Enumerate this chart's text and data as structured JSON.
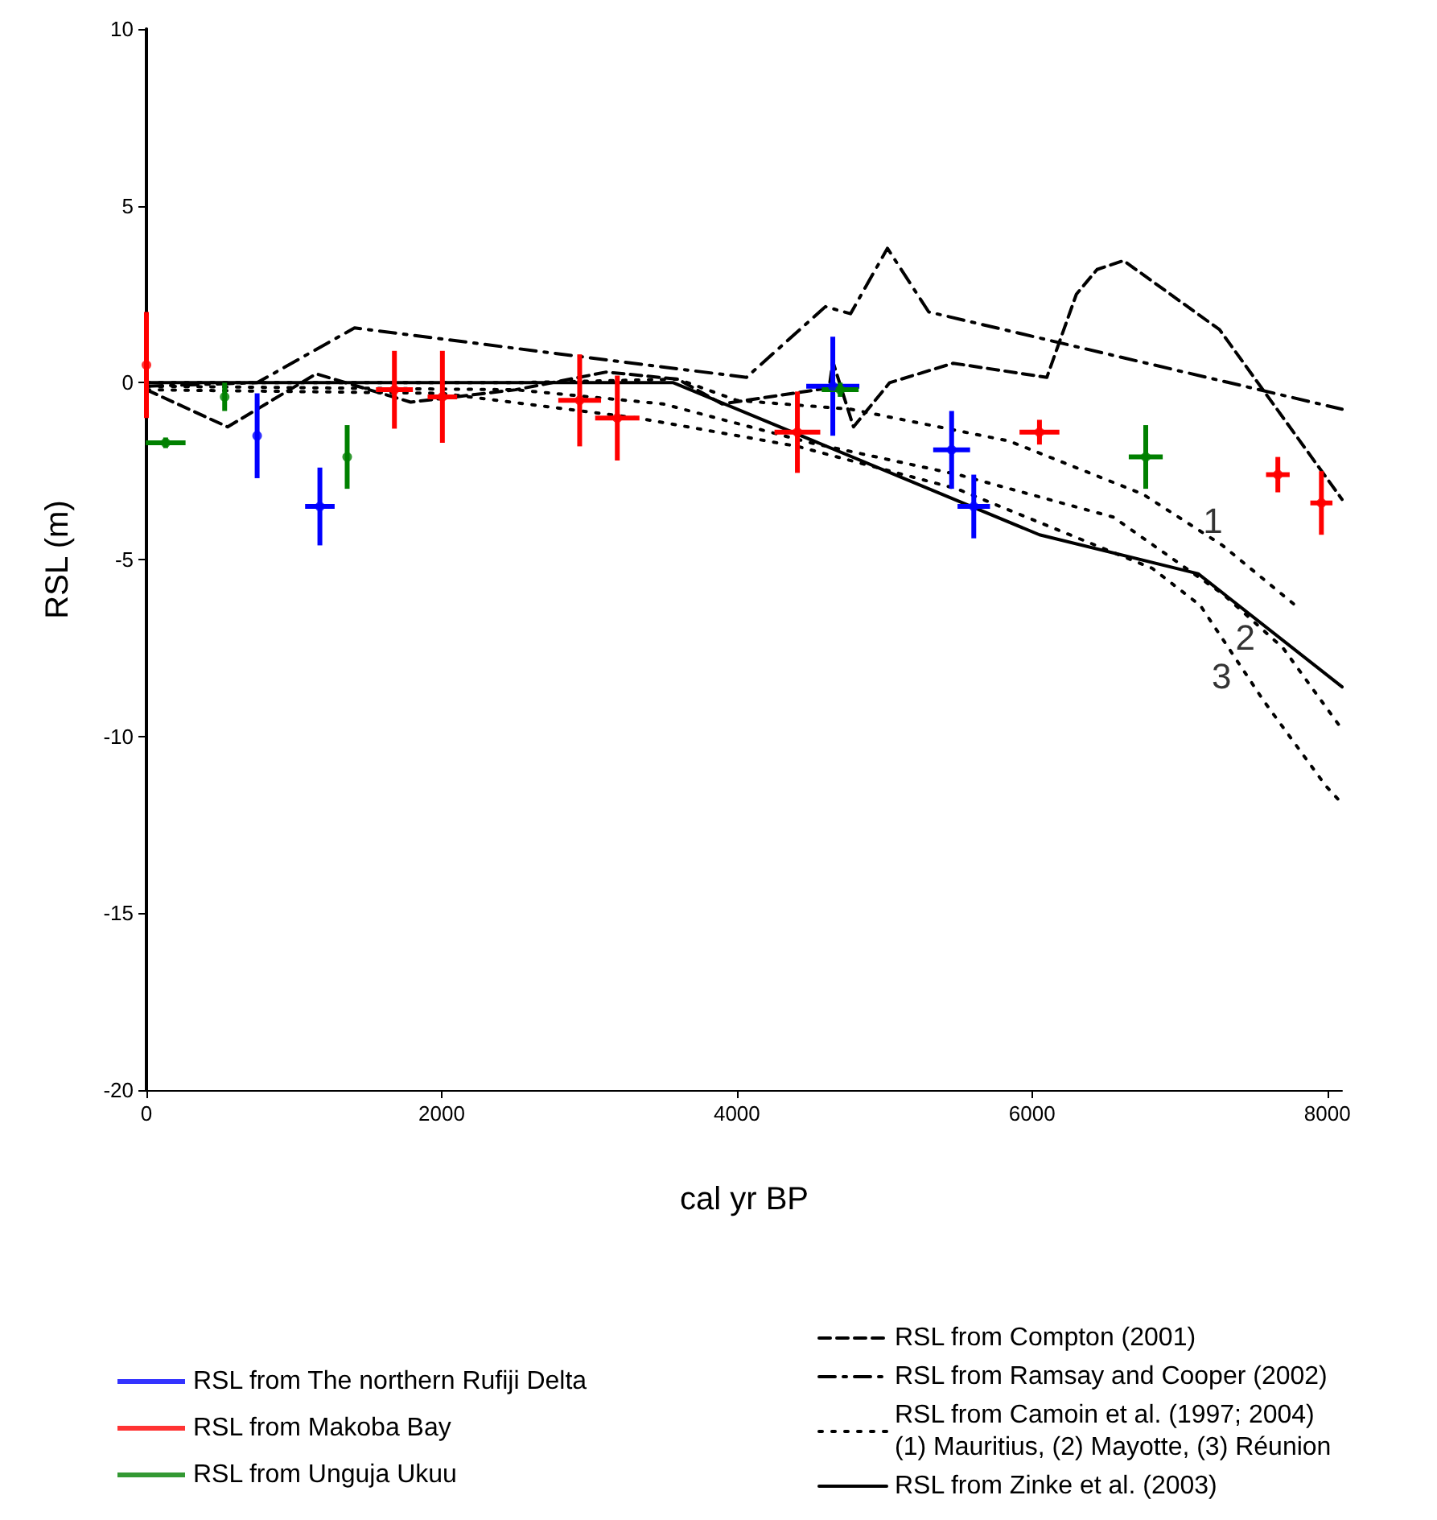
{
  "chart_data": {
    "type": "scatter",
    "xlabel": "cal yr BP",
    "ylabel": "RSL (m)",
    "xlim": [
      0,
      8100
    ],
    "xticks": [
      0,
      2000,
      4000,
      6000,
      8000
    ],
    "ylim": [
      -20,
      10
    ],
    "yticks": [
      -20,
      -15,
      -10,
      -5,
      0,
      5,
      10
    ],
    "grid": false,
    "legend": "bottom",
    "marker": "circle",
    "series": [
      {
        "name": "RSL from The northern Rufiji Delta",
        "color": "#0000ff",
        "x": [
          750,
          1175,
          4650,
          5455,
          5605
        ],
        "values": [
          -1.5,
          -3.5,
          -0.1,
          -1.9,
          -3.5
        ],
        "errors": [
          1.2,
          1.1,
          1.4,
          1.1,
          0.9
        ],
        "xerrors": [
          null,
          100,
          180,
          125,
          110
        ]
      },
      {
        "name": "RSL from Makoba Bay",
        "color": "#ff0000",
        "x": [
          0,
          1680,
          2005,
          2935,
          3190,
          4410,
          6050,
          7665,
          7960
        ],
        "values": [
          0.5,
          -0.2,
          -0.4,
          -0.5,
          -1.0,
          -1.4,
          -1.4,
          -2.6,
          -3.4
        ],
        "errors": [
          1.5,
          1.1,
          1.3,
          1.3,
          1.2,
          1.15,
          0.35,
          0.5,
          0.9
        ],
        "xerrors": [
          null,
          125,
          100,
          145,
          150,
          155,
          135,
          80,
          75
        ]
      },
      {
        "name": "RSL from Unguja Ukuu",
        "color": "#008000",
        "x": [
          130,
          530,
          1360,
          4700,
          6770
        ],
        "values": [
          -1.7,
          -0.4,
          -2.1,
          -0.2,
          -2.1
        ],
        "errors": [
          0.15,
          0.4,
          0.9,
          0.2,
          0.9
        ],
        "xerrors": [
          135,
          null,
          null,
          125,
          115
        ]
      },
      {
        "name": "RSL from Compton (2001)",
        "type": "line",
        "color": "#000000",
        "line_style": "dashed",
        "marker": "none",
        "x": [
          0,
          550,
          1150,
          1790,
          2500,
          3115,
          3600,
          3900,
          4625,
          4650,
          4790,
          5035,
          5465,
          6100,
          6300,
          6440,
          6620,
          7270,
          8100
        ],
        "values": [
          -0.2,
          -1.25,
          0.25,
          -0.55,
          -0.2,
          0.3,
          0.1,
          -0.6,
          -0.15,
          0.6,
          -1.25,
          0.0,
          0.55,
          0.15,
          2.5,
          3.2,
          3.45,
          1.5,
          -3.3
        ]
      },
      {
        "name": "RSL from Ramsay and Cooper (2002)",
        "type": "line",
        "color": "#000000",
        "line_style": "dashdot",
        "marker": "none",
        "x": [
          0,
          750,
          1410,
          3200,
          4065,
          4600,
          4770,
          5020,
          5300,
          8100
        ],
        "values": [
          -0.1,
          0.0,
          1.55,
          0.6,
          0.15,
          2.15,
          1.95,
          3.8,
          2.0,
          -0.75
        ]
      },
      {
        "name": "RSL from Camoin et al. (1997; 2004)\n(1) Mauritius, (2) Mayotte, (3) Réunion",
        "type": "line",
        "color": "#000000",
        "line_style": "dotted",
        "marker": "none",
        "x": [
          0,
          2500,
          3600,
          4000,
          4770,
          5845,
          6750,
          7290,
          7785
        ],
        "values": [
          0.0,
          0.0,
          0.1,
          -0.5,
          -0.75,
          -1.65,
          -3.15,
          -4.6,
          -6.3
        ]
      },
      {
        "type": "line",
        "color": "#000000",
        "line_style": "dotted",
        "marker": "none",
        "x": [
          0,
          2500,
          3500,
          4500,
          5500,
          6550,
          7300,
          7700,
          8100
        ],
        "values": [
          -0.1,
          -0.2,
          -0.6,
          -1.7,
          -2.6,
          -3.8,
          -6.0,
          -7.5,
          -9.8
        ]
      },
      {
        "type": "line",
        "color": "#000000",
        "line_style": "dotted",
        "marker": "none",
        "x": [
          0,
          2000,
          3330,
          4410,
          5490,
          6815,
          7140,
          7570,
          7990,
          8100
        ],
        "values": [
          -0.2,
          -0.3,
          -1.0,
          -1.8,
          -3.0,
          -5.25,
          -6.3,
          -9.0,
          -11.4,
          -11.9
        ]
      },
      {
        "name": "RSL from Zinke et al. (2003)",
        "type": "line",
        "color": "#000000",
        "line_style": "solid",
        "marker": "none",
        "x": [
          0,
          3570,
          6050,
          7125,
          8100
        ],
        "values": [
          0,
          0,
          -4.3,
          -5.4,
          -8.6
        ]
      }
    ],
    "annotations": [
      {
        "text": "1",
        "x": 7050,
        "y": -3.9
      },
      {
        "text": "2",
        "x": 7620,
        "y": -7.2
      },
      {
        "text": "3",
        "x": 7460,
        "y": -8.3
      }
    ]
  }
}
